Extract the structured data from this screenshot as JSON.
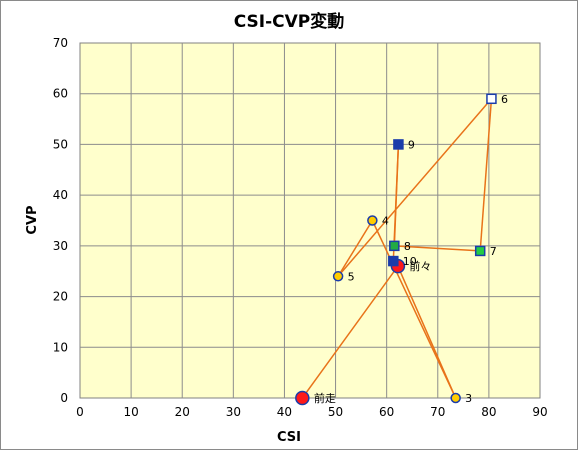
{
  "chart_data": {
    "type": "scatter",
    "title": "CSI-CVP変動",
    "xlabel": "CSI",
    "ylabel": "CVP",
    "xlim": [
      0,
      90
    ],
    "ylim": [
      0,
      70
    ],
    "x_ticks": [
      0,
      10,
      20,
      30,
      40,
      50,
      60,
      70,
      80,
      90
    ],
    "y_ticks": [
      0,
      10,
      20,
      30,
      40,
      50,
      60,
      70
    ],
    "grid": true,
    "legend": "none",
    "plot_background": "#ffffcc",
    "line_color": "#e8731a",
    "connection_order": [
      "前走",
      "前々",
      "3",
      "4",
      "5",
      "6",
      "7",
      "8",
      "9",
      "10"
    ],
    "points": [
      {
        "label": "前走",
        "x": 43.5,
        "y": 0,
        "marker": "circle-large",
        "fill": "#ff1a1a"
      },
      {
        "label": "前々",
        "x": 62.2,
        "y": 26,
        "marker": "circle-large",
        "fill": "#ff1a1a"
      },
      {
        "label": "3",
        "x": 73.5,
        "y": 0,
        "marker": "circle",
        "fill": "#ffcc00"
      },
      {
        "label": "4",
        "x": 57.2,
        "y": 35,
        "marker": "circle",
        "fill": "#ffcc00"
      },
      {
        "label": "5",
        "x": 50.5,
        "y": 24,
        "marker": "circle",
        "fill": "#ffcc00"
      },
      {
        "label": "6",
        "x": 80.5,
        "y": 59,
        "marker": "square",
        "fill": "#ffffff"
      },
      {
        "label": "7",
        "x": 78.3,
        "y": 29,
        "marker": "square",
        "fill": "#22cc44"
      },
      {
        "label": "8",
        "x": 61.5,
        "y": 30,
        "marker": "square",
        "fill": "#22aa44"
      },
      {
        "label": "9",
        "x": 62.3,
        "y": 50,
        "marker": "square",
        "fill": "#1a3caa"
      },
      {
        "label": "10",
        "x": 61.3,
        "y": 27,
        "marker": "square",
        "fill": "#1a3caa"
      }
    ]
  }
}
